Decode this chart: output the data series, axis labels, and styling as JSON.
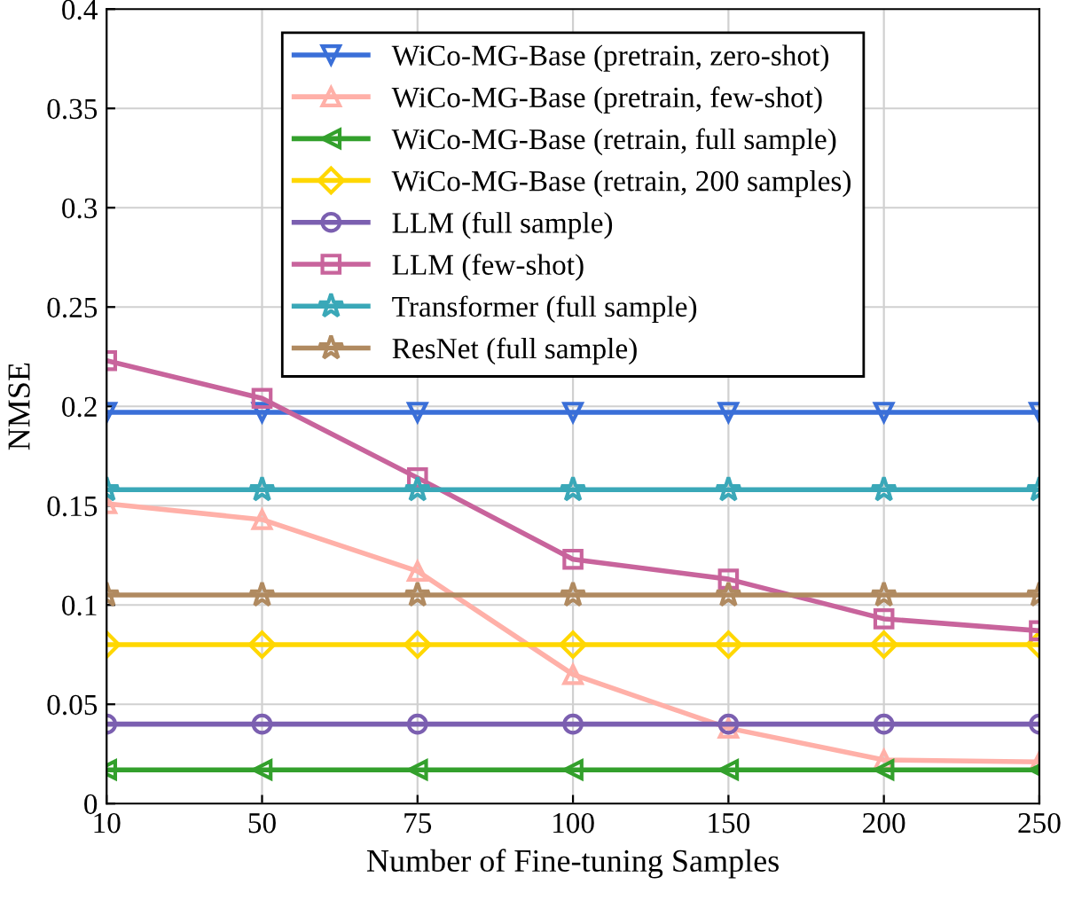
{
  "chart_data": {
    "type": "line",
    "xlabel": "Number of Fine-tuning Samples",
    "ylabel": "NMSE",
    "categories": [
      "10",
      "50",
      "75",
      "100",
      "150",
      "200",
      "250"
    ],
    "ylim": [
      0,
      0.4
    ],
    "yticks": [
      0,
      0.05,
      0.1,
      0.15,
      0.2,
      0.25,
      0.3,
      0.35,
      0.4
    ],
    "grid": true,
    "legend": "top",
    "series": [
      {
        "name": "WiCo-MG-Base (pretrain, zero-shot)",
        "color": "#3a6fd8",
        "marker": "triangle_down",
        "values": [
          0.197,
          0.197,
          0.197,
          0.197,
          0.197,
          0.197,
          0.197
        ]
      },
      {
        "name": "WiCo-MG-Base (pretrain, few-shot)",
        "color": "#ffb0a8",
        "marker": "triangle",
        "values": [
          0.151,
          0.143,
          0.117,
          0.065,
          0.038,
          0.022,
          0.021
        ]
      },
      {
        "name": "WiCo-MG-Base (retrain, full sample)",
        "color": "#33a02c",
        "marker": "triangle_left",
        "values": [
          0.017,
          0.017,
          0.017,
          0.017,
          0.017,
          0.017,
          0.017
        ]
      },
      {
        "name": "WiCo-MG-Base (retrain, 200 samples)",
        "color": "#ffd700",
        "marker": "diamond",
        "values": [
          0.08,
          0.08,
          0.08,
          0.08,
          0.08,
          0.08,
          0.08
        ]
      },
      {
        "name": "LLM (full sample)",
        "color": "#7b5fb0",
        "marker": "circle",
        "values": [
          0.04,
          0.04,
          0.04,
          0.04,
          0.04,
          0.04,
          0.04
        ]
      },
      {
        "name": "LLM (few-shot)",
        "color": "#c8649c",
        "marker": "square",
        "values": [
          0.223,
          0.204,
          0.164,
          0.123,
          0.113,
          0.093,
          0.087
        ]
      },
      {
        "name": "Transformer (full sample)",
        "color": "#3aa8b8",
        "marker": "star",
        "values": [
          0.158,
          0.158,
          0.158,
          0.158,
          0.158,
          0.158,
          0.158
        ]
      },
      {
        "name": "ResNet (full sample)",
        "color": "#b08a60",
        "marker": "star",
        "values": [
          0.105,
          0.105,
          0.105,
          0.105,
          0.105,
          0.105,
          0.105
        ]
      }
    ]
  }
}
